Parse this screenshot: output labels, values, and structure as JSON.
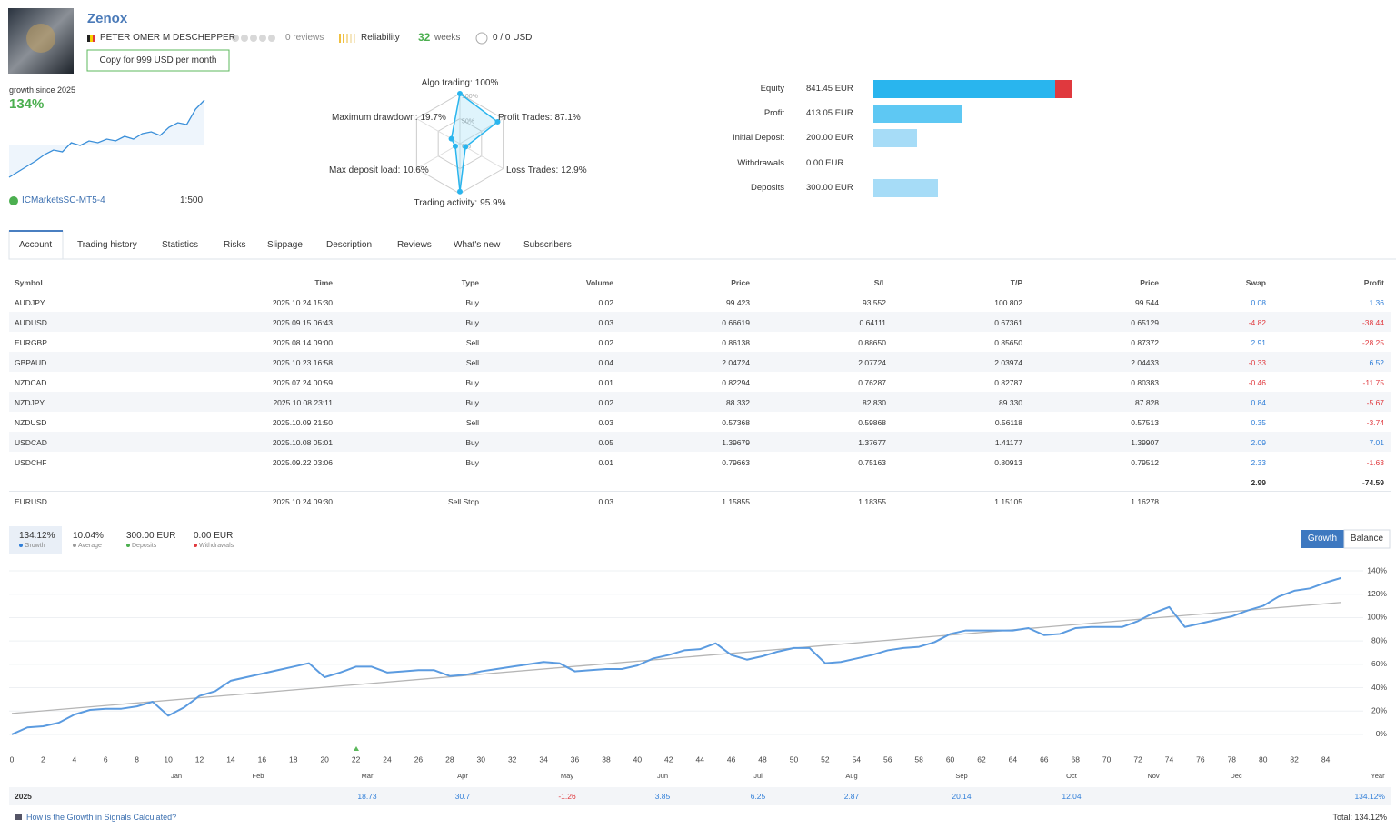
{
  "header": {
    "title": "Zenox",
    "author": "PETER OMER M DESCHEPPER",
    "reviews": "0 reviews",
    "reliability": "Reliability",
    "weeks": "32",
    "weeks_label": "weeks",
    "subscribers": "0 / 0 USD",
    "copy_button": "Copy for 999 USD per month"
  },
  "summary": {
    "growth_label": "growth since 2025",
    "growth": "134%",
    "broker": "ICMarketsSC-MT5-4",
    "leverage": "1:500",
    "sparkline": {
      "type": "line",
      "values": [
        0,
        6,
        12,
        18,
        25,
        30,
        28,
        38,
        35,
        40,
        38,
        42,
        40,
        45,
        42,
        48,
        50,
        46,
        55,
        60,
        58,
        75,
        85
      ]
    }
  },
  "radar": {
    "type": "radar",
    "rings": [
      {
        "value": 100,
        "label": "100%"
      },
      {
        "value": 50,
        "label": "50%"
      },
      {
        "value": 0,
        "label": "0%"
      }
    ],
    "axes": [
      {
        "label": "Algo trading:",
        "value": 100,
        "value_label": "100%"
      },
      {
        "label": "Profit Trades:",
        "value": 87.1,
        "value_label": "87.1%"
      },
      {
        "label": "Loss Trades:",
        "value": 12.9,
        "value_label": "12.9%"
      },
      {
        "label": "Trading activity:",
        "value": 95.9,
        "value_label": "95.9%"
      },
      {
        "label": "Max deposit load:",
        "value": 10.6,
        "value_label": "10.6%"
      },
      {
        "label": "Maximum drawdown:",
        "value": 19.7,
        "value_label": "19.7%"
      }
    ]
  },
  "balance": {
    "type": "bar",
    "xlim": [
      0,
      915
    ],
    "items": [
      {
        "label": "Equity",
        "value": 841.45,
        "value_label": "841.45 EUR",
        "color": "#29b5ee"
      },
      {
        "label": "Profit",
        "value": 413.05,
        "value_label": "413.05 EUR",
        "color": "#5ec8f3"
      },
      {
        "label": "Initial Deposit",
        "value": 200.0,
        "value_label": "200.00 EUR",
        "color": "#a6dcf7"
      },
      {
        "label": "Withdrawals",
        "value": 0.0,
        "value_label": "0.00 EUR",
        "color": "#a6dcf7"
      },
      {
        "label": "Deposits",
        "value": 300.0,
        "value_label": "300.00 EUR",
        "color": "#a6dcf7"
      }
    ],
    "equity_loss": {
      "value": 71.6,
      "color": "#e0393e"
    }
  },
  "tabs": [
    "Account",
    "Trading history",
    "Statistics",
    "Risks",
    "Slippage",
    "Description",
    "Reviews",
    "What's new",
    "Subscribers"
  ],
  "positions": {
    "columns": [
      "Symbol",
      "Time",
      "Type",
      "Volume",
      "Price",
      "S/L",
      "T/P",
      "Price",
      "Swap",
      "Profit"
    ],
    "rows": [
      [
        "AUDJPY",
        "2025.10.24 15:30",
        "Buy",
        "0.02",
        "99.423",
        "93.552",
        "100.802",
        "99.544",
        "0.08",
        "1.36"
      ],
      [
        "AUDUSD",
        "2025.09.15 06:43",
        "Buy",
        "0.03",
        "0.66619",
        "0.64111",
        "0.67361",
        "0.65129",
        "-4.82",
        "-38.44"
      ],
      [
        "EURGBP",
        "2025.08.14 09:00",
        "Sell",
        "0.02",
        "0.86138",
        "0.88650",
        "0.85650",
        "0.87372",
        "2.91",
        "-28.25"
      ],
      [
        "GBPAUD",
        "2025.10.23 16:58",
        "Sell",
        "0.04",
        "2.04724",
        "2.07724",
        "2.03974",
        "2.04433",
        "-0.33",
        "6.52"
      ],
      [
        "NZDCAD",
        "2025.07.24 00:59",
        "Buy",
        "0.01",
        "0.82294",
        "0.76287",
        "0.82787",
        "0.80383",
        "-0.46",
        "-11.75"
      ],
      [
        "NZDJPY",
        "2025.10.08 23:11",
        "Buy",
        "0.02",
        "88.332",
        "82.830",
        "89.330",
        "87.828",
        "0.84",
        "-5.67"
      ],
      [
        "NZDUSD",
        "2025.10.09 21:50",
        "Sell",
        "0.03",
        "0.57368",
        "0.59868",
        "0.56118",
        "0.57513",
        "0.35",
        "-3.74"
      ],
      [
        "USDCAD",
        "2025.10.08 05:01",
        "Buy",
        "0.05",
        "1.39679",
        "1.37677",
        "1.41177",
        "1.39907",
        "2.09",
        "7.01"
      ],
      [
        "USDCHF",
        "2025.09.22 03:06",
        "Buy",
        "0.01",
        "0.79663",
        "0.75163",
        "0.80913",
        "0.79512",
        "2.33",
        "-1.63"
      ]
    ],
    "totals": [
      "2.99",
      "-74.59"
    ],
    "pending": [
      "EURUSD",
      "2025.10.24 09:30",
      "Sell Stop",
      "0.03",
      "1.15855",
      "1.18355",
      "1.15105",
      "1.16278"
    ]
  },
  "growth": {
    "stats": [
      {
        "value": "134.12%",
        "label": "Growth",
        "color": "#2f7ed8"
      },
      {
        "value": "10.04%",
        "label": "Average",
        "color": "#999999"
      },
      {
        "value": "300.00 EUR",
        "label": "Deposits",
        "color": "#4caf50"
      },
      {
        "value": "0.00 EUR",
        "label": "Withdrawals",
        "color": "#e0393e"
      }
    ],
    "buttons": [
      "Growth",
      "Balance"
    ],
    "chart": {
      "type": "line",
      "color": "#5b9be0",
      "trend_color": "#b5b5b5",
      "x": [
        0,
        1,
        2,
        3,
        4,
        5,
        6,
        7,
        8,
        9,
        10,
        11,
        12,
        13,
        14,
        15,
        16,
        17,
        18,
        19,
        20,
        21,
        22,
        23,
        24,
        25,
        26,
        27,
        28,
        29,
        30,
        31,
        32,
        33,
        34,
        35,
        36,
        37,
        38,
        39,
        40,
        41,
        42,
        43,
        44,
        45,
        46,
        47,
        48,
        49,
        50,
        51,
        52,
        53,
        54,
        55,
        56,
        57,
        58,
        59,
        60,
        61,
        62,
        63,
        64,
        65,
        66,
        67,
        68,
        69,
        70,
        71,
        72,
        73,
        74,
        75,
        76,
        77,
        78,
        79,
        80,
        81,
        82,
        83,
        84,
        85
      ],
      "values": [
        0,
        6,
        7,
        10,
        17,
        21,
        22,
        22,
        24,
        28,
        16,
        23,
        33,
        37,
        46,
        49,
        52,
        55,
        58,
        61,
        49,
        53,
        58,
        58,
        53,
        54,
        55,
        55,
        50,
        51,
        54,
        56,
        58,
        60,
        62,
        61,
        54,
        55,
        56,
        56,
        59,
        65,
        68,
        72,
        73,
        78,
        68,
        64,
        67,
        71,
        74,
        74,
        61,
        62,
        65,
        68,
        72,
        74,
        75,
        79,
        86,
        89,
        89,
        89,
        89,
        91,
        85,
        86,
        91,
        92,
        92,
        92,
        97,
        104,
        109,
        92,
        95,
        98,
        101,
        106,
        110,
        118,
        123,
        125,
        130,
        134
      ],
      "trend": {
        "x": [
          0,
          85
        ],
        "values": [
          18,
          113
        ]
      },
      "xlim": [
        0,
        86
      ],
      "ylim": [
        -5,
        145
      ],
      "xticks": [
        0,
        2,
        4,
        6,
        8,
        10,
        12,
        14,
        16,
        18,
        20,
        22,
        24,
        26,
        28,
        30,
        32,
        34,
        36,
        38,
        40,
        42,
        44,
        46,
        48,
        50,
        52,
        54,
        56,
        58,
        60,
        62,
        64,
        66,
        68,
        70,
        72,
        74,
        76,
        78,
        80,
        82,
        84
      ],
      "yticks": [
        {
          "value": 0,
          "label": "0%"
        },
        {
          "value": 20,
          "label": "20%"
        },
        {
          "value": 40,
          "label": "40%"
        },
        {
          "value": 60,
          "label": "60%"
        },
        {
          "value": 80,
          "label": "80%"
        },
        {
          "value": 100,
          "label": "100%"
        },
        {
          "value": 120,
          "label": "120%"
        },
        {
          "value": 140,
          "label": "140%"
        }
      ],
      "grid": true,
      "months": [
        "Jan",
        "Feb",
        "Mar",
        "Apr",
        "May",
        "Jun",
        "Jul",
        "Aug",
        "Sep",
        "Oct",
        "Nov",
        "Dec"
      ],
      "year_label": "Year"
    },
    "year_row": {
      "year": "2025",
      "months": [
        null,
        null,
        "18.73",
        "30.7",
        "-1.26",
        "3.85",
        "6.25",
        "2.87",
        "20.14",
        "12.04",
        null,
        null
      ],
      "total": "134.12%"
    },
    "footer": {
      "link": "How is the Growth in Signals Calculated?",
      "total": "Total: 134.12%"
    }
  }
}
